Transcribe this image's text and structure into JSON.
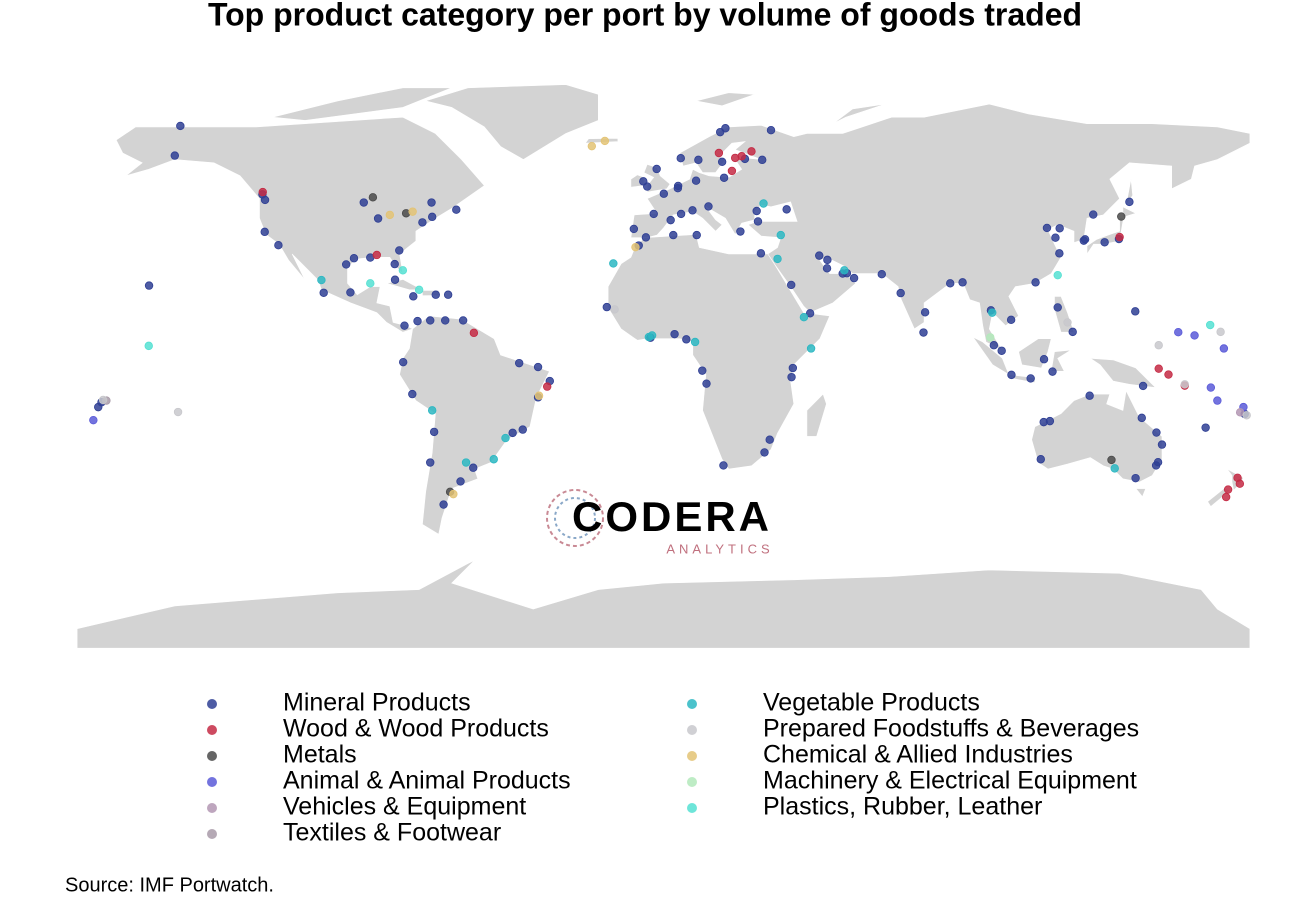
{
  "chart_data": {
    "type": "map",
    "title": "Top product category per port by volume of goods traded",
    "source": "Source: IMF Portwatch.",
    "watermark": {
      "name": "CODERA",
      "tagline": "ANALYTICS"
    },
    "series": [
      {
        "name": "Mineral Products",
        "color": "#2f3f94",
        "x": [
          4.5,
          4.4,
          10,
          18.6,
          18,
          10.7,
          5.3,
          25,
          30.3,
          0.1,
          -3,
          -9.1,
          -5.4,
          2.2,
          5.4,
          8.9,
          13.8,
          23.6,
          29,
          37.8,
          28.6,
          29.9,
          10.2,
          3,
          33,
          17.4,
          19,
          -5,
          -2.1,
          -6.2,
          50.2,
          55,
          56.3,
          47.8,
          50.3,
          39.2,
          45,
          58.5,
          67,
          72.8,
          80.3,
          79.8,
          88,
          91.8,
          103.8,
          101.4,
          100.5,
          106.7,
          114.2,
          121.5,
          120.3,
          117.7,
          121.6,
          129,
          129.4,
          139.8,
          135.4,
          121,
          106.8,
          112.7,
          116.8,
          119.4,
          125.6,
          143,
          131.9,
          116.7,
          118.6,
          115.8,
          130.8,
          151.3,
          151.8,
          151.2,
          144.9,
          153,
          146.8,
          -95,
          -90,
          -97.4,
          -82.5,
          -81.1,
          -74,
          -71,
          -63.6,
          -71.2,
          -87.6,
          -92,
          -123.1,
          -122.3,
          -118.2,
          -122.4,
          -150,
          -148.3,
          -96.1,
          -104.3,
          -79.5,
          -75.5,
          -71.6,
          -67,
          -61.5,
          -76.8,
          -69.9,
          -82.4,
          -66.1,
          -79.9,
          -77.1,
          -70.4,
          -71.6,
          -46.3,
          -43.2,
          -38.5,
          -34.9,
          -38.5,
          -44.3,
          -58.4,
          -62.3,
          -67.5,
          3.4,
          -4,
          -17.4,
          -7.6,
          13.2,
          31,
          18.4,
          39.7,
          39.3,
          32.6,
          7,
          11.9,
          -157.9,
          -172.5,
          -173.5,
          178.4,
          166.4,
          147.2,
          144.8
        ],
        "values": [
          51.9,
          51.2,
          53.5,
          54.4,
          59.3,
          59.9,
          60.4,
          60.2,
          59.9,
          49.5,
          43.3,
          38.7,
          36.1,
          41.4,
          43.3,
          44.4,
          45.6,
          37.9,
          41,
          44.7,
          44.2,
          31.2,
          36.8,
          36.8,
          69,
          68.4,
          69.6,
          51.7,
          57.1,
          53.3,
          26.6,
          25,
          25.1,
          30.5,
          29.2,
          21.5,
          12.8,
          23.6,
          24.8,
          19,
          13.1,
          6.9,
          22,
          22.3,
          1.3,
          3,
          13.7,
          10.8,
          22.3,
          31.2,
          36,
          39,
          38.9,
          35.1,
          35.5,
          35.6,
          34.6,
          14.6,
          -6.1,
          -7.2,
          -1.3,
          -5.1,
          7.1,
          47,
          43.1,
          -20.6,
          -20.3,
          -32,
          -12.5,
          -23.8,
          -32.9,
          -33.9,
          -37.8,
          -27.5,
          -19.3,
          29.7,
          29.9,
          27.8,
          27.9,
          32.1,
          40.7,
          42.4,
          44.6,
          46.8,
          41.9,
          46.8,
          49.3,
          47.6,
          33.7,
          37.8,
          61.2,
          70.3,
          19.2,
          19.1,
          9,
          10.4,
          10.6,
          10.6,
          10.6,
          18,
          18.5,
          23.1,
          18.5,
          -2.2,
          -12,
          -23.6,
          -33,
          -23.9,
          -22.9,
          -13,
          -8,
          -3.7,
          -2.5,
          -34.6,
          -38.8,
          -45.9,
          6.4,
          5.3,
          14.7,
          33.6,
          -8.8,
          -29.9,
          -33.9,
          -4,
          -6.8,
          -26,
          4.8,
          -4.8,
          21.3,
          -14.5,
          -16,
          -18.1,
          -22.3,
          -9.5,
          13.4
        ]
      },
      {
        "name": "Wood & Wood Products",
        "color": "#c42a44",
        "x": [
          24,
          22,
          17,
          21,
          27,
          176.2,
          176.9,
          173.3,
          172.7,
          152,
          155,
          160,
          140,
          -58.2,
          -35.7,
          -123,
          -88
        ],
        "values": [
          61,
          60.5,
          62,
          56.5,
          62.5,
          -37.7,
          -39.5,
          -41.3,
          -43.6,
          -4.2,
          -6,
          -9.4,
          36.2,
          6.8,
          -9.7,
          50,
          30.7
        ]
      },
      {
        "name": "Metals",
        "color": "#4a4a4a",
        "x": [
          137.5,
          -89.2,
          -65.5,
          140.5,
          -79
        ],
        "values": [
          -32.2,
          48.4,
          -42,
          42.5,
          43.5
        ]
      },
      {
        "name": "Animal & Animal Products",
        "color": "#5a5ad8",
        "x": [
          170,
          172,
          163,
          168,
          158,
          178,
          -175
        ],
        "values": [
          -14,
          2,
          6,
          -10,
          7,
          -16,
          -20
        ]
      },
      {
        "name": "Vehicles & Equipment",
        "color": "#b396b3",
        "x": [
          177
        ],
        "values": [
          -17.6
        ]
      },
      {
        "name": "Textiles & Footwear",
        "color": "#a89aa8",
        "x": [
          -171
        ],
        "values": [
          -14
        ]
      },
      {
        "name": "Vegetable Products",
        "color": "#2bb7c2",
        "x": [
          30.7,
          43.1,
          45.3,
          -48.5,
          -52.1,
          -60.6,
          -4.5,
          9.7,
          36,
          100.9,
          -71,
          35,
          -15.4,
          138.5,
          -105,
          55.5,
          -3.5
        ],
        "values": [
          46.5,
          11.6,
          2,
          -25.5,
          -32,
          -33,
          5.5,
          4,
          36.8,
          13,
          -17,
          29.5,
          28.1,
          -34.8,
          23,
          26,
          6
        ]
      },
      {
        "name": "Prepared Foodstuffs & Beverages",
        "color": "#c8c8cc",
        "x": [
          160,
          152,
          -149,
          -172,
          124,
          171,
          179,
          -15
        ],
        "values": [
          -9,
          3,
          -17.5,
          -13.8,
          10,
          7.1,
          -18.5,
          14
        ]
      },
      {
        "name": "Chemical & Allied Industries",
        "color": "#e3c374",
        "x": [
          -22,
          -18,
          -38.2,
          -64.5,
          -77,
          -84,
          -8.6
        ],
        "values": [
          64.1,
          65.7,
          -12.5,
          -42.7,
          44,
          43,
          33.1
        ]
      },
      {
        "name": "Machinery & Electrical Equipment",
        "color": "#b3e9bb",
        "x": [
          100.3
        ],
        "values": [
          5.4
        ]
      },
      {
        "name": "Plastics, Rubber, Leather",
        "color": "#55e0d2",
        "x": [
          -158,
          -90,
          -75,
          167.8,
          -80,
          121
        ],
        "values": [
          2.8,
          22,
          20,
          9.2,
          26,
          24.5
        ]
      }
    ]
  }
}
